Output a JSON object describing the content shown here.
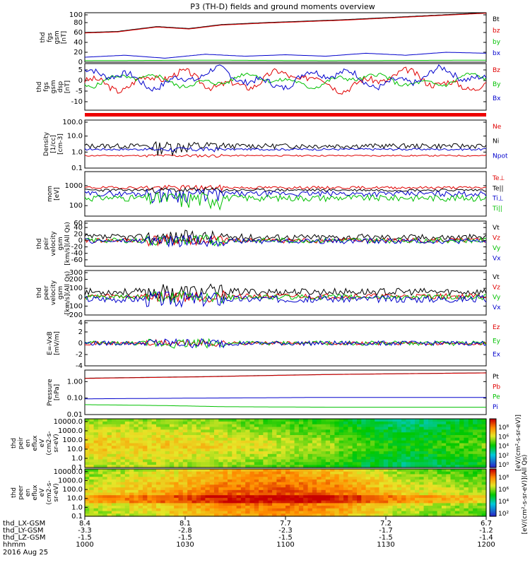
{
  "chart_data": {
    "type": "line",
    "title": "P3 (TH-D) fields and ground moments overview",
    "panels": [
      {
        "ylabel": [
          "thd",
          "fgs",
          "gsm",
          "[nT]"
        ],
        "ylim": [
          0,
          100
        ],
        "scale": "linear",
        "ticks": [
          "100",
          "80",
          "60",
          "40",
          "20",
          "0"
        ],
        "series": [
          {
            "name": "Bt",
            "color": "#000000",
            "kind": "trend",
            "points": [
              [
                0,
                60
              ],
              [
                0.08,
                62
              ],
              [
                0.18,
                72
              ],
              [
                0.26,
                68
              ],
              [
                0.34,
                76
              ],
              [
                0.45,
                80
              ],
              [
                0.55,
                83
              ],
              [
                0.65,
                86
              ],
              [
                0.75,
                90
              ],
              [
                0.85,
                94
              ],
              [
                1,
                100
              ]
            ]
          },
          {
            "name": "bz",
            "color": "#e00000",
            "kind": "trend",
            "points": [
              [
                0,
                59
              ],
              [
                0.08,
                61
              ],
              [
                0.18,
                71
              ],
              [
                0.26,
                67
              ],
              [
                0.34,
                75
              ],
              [
                0.45,
                79
              ],
              [
                0.55,
                82
              ],
              [
                0.65,
                85
              ],
              [
                0.75,
                89
              ],
              [
                0.85,
                93
              ],
              [
                1,
                99
              ]
            ]
          },
          {
            "name": "by",
            "color": "#00c000",
            "kind": "trend",
            "points": [
              [
                0,
                3
              ],
              [
                0.3,
                4
              ],
              [
                0.6,
                3
              ],
              [
                1,
                4
              ]
            ]
          },
          {
            "name": "bx",
            "color": "#0000cc",
            "kind": "trend",
            "points": [
              [
                0,
                10
              ],
              [
                0.1,
                14
              ],
              [
                0.2,
                8
              ],
              [
                0.3,
                16
              ],
              [
                0.4,
                12
              ],
              [
                0.5,
                15
              ],
              [
                0.6,
                12
              ],
              [
                0.7,
                18
              ],
              [
                0.8,
                14
              ],
              [
                0.9,
                20
              ],
              [
                1,
                18
              ]
            ]
          }
        ]
      },
      {
        "ylabel": [
          "thd",
          "fgs",
          "gsm",
          "dsp",
          "[nT]"
        ],
        "ylim": [
          -14,
          8
        ],
        "scale": "linear",
        "ticks": [
          "5",
          "0",
          "-5",
          "-10"
        ],
        "series": [
          {
            "name": "Bz",
            "color": "#e00000",
            "kind": "wave",
            "base": 0,
            "amp": 3,
            "seed": 3
          },
          {
            "name": "By",
            "color": "#00c000",
            "kind": "wave",
            "base": 0,
            "amp": 2,
            "seed": 5
          },
          {
            "name": "Bx",
            "color": "#0000cc",
            "kind": "wave",
            "base": 1,
            "amp": 3,
            "seed": 7
          }
        ]
      },
      {
        "ylabel": [
          "Density",
          "[1/cc]",
          "[cm-3]"
        ],
        "ylim": [
          0.1,
          100
        ],
        "scale": "log",
        "ticks": [
          "100.0",
          "10.0",
          "1.0",
          "0.1"
        ],
        "series": [
          {
            "name": "Ne",
            "color": "#e00000",
            "kind": "noise",
            "base": 0.6,
            "amp": 0.1,
            "seed": 11
          },
          {
            "name": "Ni",
            "color": "#000000",
            "kind": "noise",
            "base": 2.5,
            "amp": 0.35,
            "seed": 13
          },
          {
            "name": "Npot",
            "color": "#0000cc",
            "kind": "noise",
            "base": 1.5,
            "amp": 0.15,
            "seed": 17
          }
        ]
      },
      {
        "ylabel": [
          "mom",
          "[eV]"
        ],
        "ylim": [
          30,
          5000
        ],
        "scale": "log",
        "ticks": [
          "1000",
          "100"
        ],
        "series": [
          {
            "name": "Te⊥",
            "color": "#e00000",
            "kind": "noise",
            "base": 800,
            "amp": 0.15,
            "seed": 19
          },
          {
            "name": "Te||",
            "color": "#000000",
            "kind": "noise",
            "base": 600,
            "amp": 0.15,
            "seed": 23
          },
          {
            "name": "Ti⊥",
            "color": "#0000cc",
            "kind": "noise",
            "base": 400,
            "amp": 0.3,
            "seed": 29
          },
          {
            "name": "Ti||",
            "color": "#00c000",
            "kind": "noise",
            "base": 250,
            "amp": 0.35,
            "seed": 31
          }
        ]
      },
      {
        "ylabel": [
          "thd",
          "peir",
          "velocity",
          "gsm",
          "[km/s](All Qs)"
        ],
        "ylim": [
          -80,
          60
        ],
        "scale": "linear",
        "ticks": [
          "60",
          "40",
          "20",
          "0",
          "-20",
          "-40",
          "-60"
        ],
        "series": [
          {
            "name": "Vt",
            "color": "#000000",
            "kind": "noise",
            "base": 10,
            "amp": 10,
            "seed": 37
          },
          {
            "name": "Vz",
            "color": "#e00000",
            "kind": "noise",
            "base": 0,
            "amp": 8,
            "seed": 41
          },
          {
            "name": "Vy",
            "color": "#00c000",
            "kind": "noise",
            "base": 0,
            "amp": 8,
            "seed": 43
          },
          {
            "name": "Vx",
            "color": "#0000cc",
            "kind": "noise",
            "base": -2,
            "amp": 8,
            "seed": 47
          }
        ]
      },
      {
        "ylabel": [
          "thd",
          "peer",
          "velocity",
          "gsm",
          "[km/s](All Qs)"
        ],
        "ylim": [
          -200,
          300
        ],
        "scale": "linear",
        "ticks": [
          "300",
          "200",
          "100",
          "0",
          "-100",
          "-200"
        ],
        "series": [
          {
            "name": "Vt",
            "color": "#000000",
            "kind": "noise",
            "base": 60,
            "amp": 40,
            "seed": 53
          },
          {
            "name": "Vz",
            "color": "#e00000",
            "kind": "noise",
            "base": 10,
            "amp": 30,
            "seed": 59
          },
          {
            "name": "Vy",
            "color": "#00c000",
            "kind": "noise",
            "base": 0,
            "amp": 30,
            "seed": 61
          },
          {
            "name": "Vx",
            "color": "#0000cc",
            "kind": "noise",
            "base": -20,
            "amp": 40,
            "seed": 67
          }
        ]
      },
      {
        "ylabel": [
          "E=-VxB",
          "[mV/m]"
        ],
        "ylim": [
          -4,
          4
        ],
        "scale": "linear",
        "ticks": [
          "4",
          "2",
          "0",
          "-2",
          "-4"
        ],
        "series": [
          {
            "name": "Ez",
            "color": "#e00000",
            "kind": "noise",
            "base": 0,
            "amp": 0.3,
            "seed": 71
          },
          {
            "name": "Ey",
            "color": "#00c000",
            "kind": "noise",
            "base": 0,
            "amp": 0.4,
            "seed": 73
          },
          {
            "name": "Ex",
            "color": "#0000cc",
            "kind": "noise",
            "base": 0,
            "amp": 0.4,
            "seed": 79
          }
        ]
      },
      {
        "ylabel": [
          "Pressure",
          "[nPa]"
        ],
        "ylim": [
          0.01,
          5
        ],
        "scale": "log",
        "ticks": [
          "1.00",
          "0.10",
          "0.01"
        ],
        "series": [
          {
            "name": "Pt",
            "color": "#000000",
            "kind": "trend",
            "points": [
              [
                0,
                1.6
              ],
              [
                0.3,
                2.0
              ],
              [
                0.6,
                2.7
              ],
              [
                1,
                3.4
              ]
            ]
          },
          {
            "name": "Pb",
            "color": "#e00000",
            "kind": "trend",
            "points": [
              [
                0,
                1.55
              ],
              [
                0.3,
                1.95
              ],
              [
                0.6,
                2.65
              ],
              [
                1,
                3.35
              ]
            ]
          },
          {
            "name": "Pe",
            "color": "#00c000",
            "kind": "trend",
            "points": [
              [
                0,
                0.04
              ],
              [
                0.2,
                0.035
              ],
              [
                0.35,
                0.03
              ],
              [
                0.6,
                0.028
              ],
              [
                1,
                0.028
              ]
            ]
          },
          {
            "name": "Pi",
            "color": "#0000cc",
            "kind": "trend",
            "points": [
              [
                0,
                0.09
              ],
              [
                0.3,
                0.1
              ],
              [
                0.6,
                0.11
              ],
              [
                1,
                0.11
              ]
            ]
          }
        ]
      }
    ],
    "spectrograms": [
      {
        "ylabel": [
          "thd",
          "peir",
          "en",
          "eflux",
          "eV",
          "(cm2-s-",
          "sr-eV)"
        ],
        "ylim": [
          0.1,
          20000
        ],
        "ticks": [
          "10000.0",
          "1000.0",
          "100.0",
          "10.0",
          "1.0",
          "0.1"
        ],
        "seed": 83,
        "bands": [
          [
            0,
            0.72
          ],
          [
            0.3,
            0.7
          ],
          [
            0.6,
            0.6
          ],
          [
            0.8,
            0.45
          ],
          [
            1,
            0.55
          ]
        ]
      },
      {
        "ylabel": [
          "thd",
          "peer",
          "en",
          "eflux",
          "eV",
          "(cm2-s-",
          "sr-eV)"
        ],
        "ylim": [
          0.1,
          20000
        ],
        "ticks": [
          "10000.0",
          "1000.0",
          "100.0",
          "10.0",
          "1.0",
          "0.1"
        ],
        "seed": 89,
        "bands": [
          [
            0,
            0.68
          ],
          [
            0.2,
            0.78
          ],
          [
            0.35,
            0.88
          ],
          [
            0.5,
            0.92
          ],
          [
            0.65,
            0.85
          ],
          [
            0.8,
            0.7
          ],
          [
            1,
            0.62
          ]
        ]
      }
    ],
    "colorbar": {
      "ticks": [
        "10⁸",
        "10⁶",
        "10⁴",
        "10²",
        "10⁰"
      ],
      "ticks2": [
        "10⁸",
        "10⁶",
        "10⁴",
        "10²"
      ],
      "label": "[eV/(cm²-s-sr-eV)]",
      "label2": "[eV/(cm²-s-sr-eV)](All Qs)"
    },
    "xaxis": {
      "rows": [
        {
          "label": "thd_LX-GSM",
          "values": [
            "8.4",
            "8.1",
            "7.7",
            "7.2",
            "6.7"
          ]
        },
        {
          "label": "thd_LY-GSM",
          "values": [
            "-3.3",
            "-2.8",
            "-2.3",
            "-1.7",
            "-1.2"
          ]
        },
        {
          "label": "thd_LZ-GSM",
          "values": [
            "-1.5",
            "-1.5",
            "-1.5",
            "-1.5",
            "-1.4"
          ]
        },
        {
          "label": "hhmm",
          "values": [
            "1000",
            "1030",
            "1100",
            "1130",
            "1200"
          ]
        }
      ],
      "date": "2016 Aug 25"
    }
  }
}
